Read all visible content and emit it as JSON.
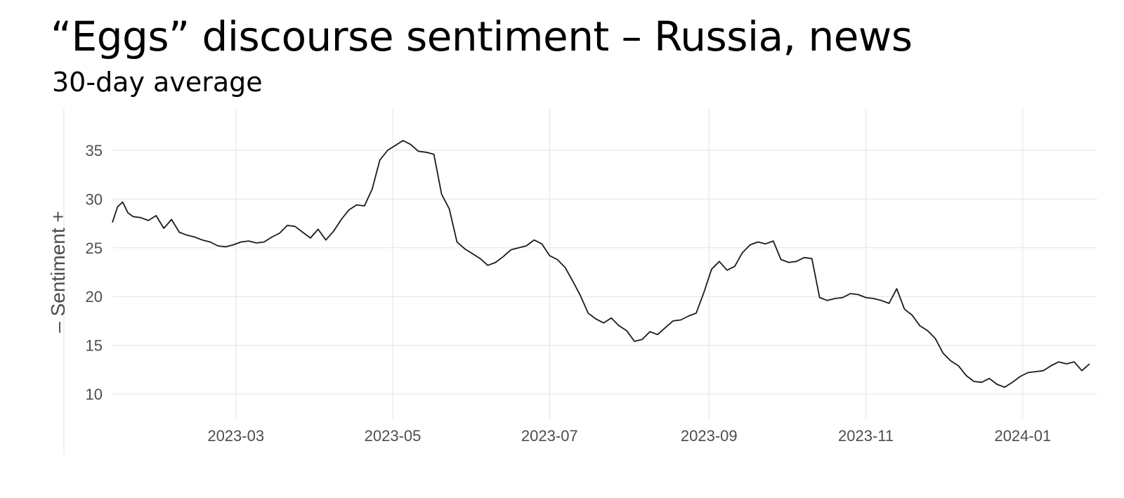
{
  "chart_data": {
    "type": "line",
    "title": "“Eggs” discourse sentiment – Russia, news",
    "subtitle": "30-day average",
    "ylabel": "–  Sentiment  +",
    "xlabel": "",
    "ylim": [
      8,
      39
    ],
    "xlim": [
      "2023-01-12",
      "2024-01-30"
    ],
    "yticks": [
      10,
      15,
      20,
      25,
      30,
      35
    ],
    "xticks": [
      "2023-03",
      "2023-05",
      "2023-07",
      "2023-09",
      "2023-11",
      "2024-01"
    ],
    "xtick_dates": [
      "2023-03-01",
      "2023-05-01",
      "2023-07-01",
      "2023-09-01",
      "2023-11-01",
      "2024-01-01"
    ],
    "grid": true,
    "line_color": "#1a1a1a",
    "series": [
      {
        "x": [
          "2023-01-12",
          "2023-01-14",
          "2023-01-16",
          "2023-01-18",
          "2023-01-20",
          "2023-01-23",
          "2023-01-26",
          "2023-01-29",
          "2023-02-01",
          "2023-02-04",
          "2023-02-07",
          "2023-02-10",
          "2023-02-13",
          "2023-02-16",
          "2023-02-19",
          "2023-02-22",
          "2023-02-25",
          "2023-02-28",
          "2023-03-03",
          "2023-03-06",
          "2023-03-09",
          "2023-03-12",
          "2023-03-15",
          "2023-03-18",
          "2023-03-21",
          "2023-03-24",
          "2023-03-27",
          "2023-03-30",
          "2023-04-02",
          "2023-04-05",
          "2023-04-08",
          "2023-04-11",
          "2023-04-14",
          "2023-04-17",
          "2023-04-20",
          "2023-04-23",
          "2023-04-26",
          "2023-04-29",
          "2023-05-02",
          "2023-05-05",
          "2023-05-08",
          "2023-05-11",
          "2023-05-14",
          "2023-05-17",
          "2023-05-20",
          "2023-05-23",
          "2023-05-26",
          "2023-05-29",
          "2023-06-01",
          "2023-06-04",
          "2023-06-07",
          "2023-06-10",
          "2023-06-13",
          "2023-06-16",
          "2023-06-19",
          "2023-06-22",
          "2023-06-25",
          "2023-06-28",
          "2023-07-01",
          "2023-07-04",
          "2023-07-07",
          "2023-07-10",
          "2023-07-13",
          "2023-07-16",
          "2023-07-19",
          "2023-07-22",
          "2023-07-25",
          "2023-07-28",
          "2023-07-31",
          "2023-08-03",
          "2023-08-06",
          "2023-08-09",
          "2023-08-12",
          "2023-08-15",
          "2023-08-18",
          "2023-08-21",
          "2023-08-24",
          "2023-08-27",
          "2023-08-30",
          "2023-09-02",
          "2023-09-05",
          "2023-09-08",
          "2023-09-11",
          "2023-09-14",
          "2023-09-17",
          "2023-09-20",
          "2023-09-23",
          "2023-09-26",
          "2023-09-29",
          "2023-10-02",
          "2023-10-05",
          "2023-10-08",
          "2023-10-11",
          "2023-10-14",
          "2023-10-17",
          "2023-10-20",
          "2023-10-23",
          "2023-10-26",
          "2023-10-29",
          "2023-11-01",
          "2023-11-04",
          "2023-11-07",
          "2023-11-10",
          "2023-11-13",
          "2023-11-16",
          "2023-11-19",
          "2023-11-22",
          "2023-11-25",
          "2023-11-28",
          "2023-12-01",
          "2023-12-04",
          "2023-12-07",
          "2023-12-10",
          "2023-12-13",
          "2023-12-16",
          "2023-12-19",
          "2023-12-22",
          "2023-12-25",
          "2023-12-28",
          "2023-12-31",
          "2024-01-03",
          "2024-01-06",
          "2024-01-09",
          "2024-01-12",
          "2024-01-15",
          "2024-01-18",
          "2024-01-21",
          "2024-01-24",
          "2024-01-27"
        ],
        "y": [
          27.6,
          29.2,
          29.7,
          28.6,
          28.2,
          28.1,
          27.8,
          28.3,
          27.0,
          27.9,
          26.6,
          26.3,
          26.1,
          25.8,
          25.6,
          25.2,
          25.1,
          25.3,
          25.6,
          25.7,
          25.5,
          25.6,
          26.1,
          26.5,
          27.3,
          27.2,
          26.6,
          26.0,
          26.9,
          25.8,
          26.7,
          27.9,
          28.9,
          29.4,
          29.3,
          31.0,
          34.0,
          35.0,
          35.5,
          36.0,
          35.6,
          34.9,
          34.8,
          34.6,
          30.5,
          29.0,
          25.6,
          24.9,
          24.4,
          23.9,
          23.2,
          23.5,
          24.1,
          24.8,
          25.0,
          25.2,
          25.8,
          25.4,
          24.2,
          23.8,
          23.0,
          21.6,
          20.1,
          18.3,
          17.7,
          17.3,
          17.8,
          17.0,
          16.5,
          15.4,
          15.6,
          16.4,
          16.1,
          16.8,
          17.5,
          17.6,
          18.0,
          18.3,
          20.4,
          22.8,
          23.6,
          22.7,
          23.1,
          24.5,
          25.3,
          25.6,
          25.4,
          25.7,
          23.8,
          23.5,
          23.6,
          24.0,
          23.9,
          19.9,
          19.6,
          19.8,
          19.9,
          20.3,
          20.2,
          19.9,
          19.8,
          19.6,
          19.3,
          20.8,
          18.7,
          18.1,
          17.0,
          16.5,
          15.7,
          14.2,
          13.4,
          12.9,
          11.9,
          11.3,
          11.2,
          11.6,
          11.0,
          10.7,
          11.2,
          11.8,
          12.2,
          12.3,
          12.4,
          12.9,
          13.3,
          13.1,
          13.3,
          12.4,
          13.1
        ]
      }
    ]
  }
}
